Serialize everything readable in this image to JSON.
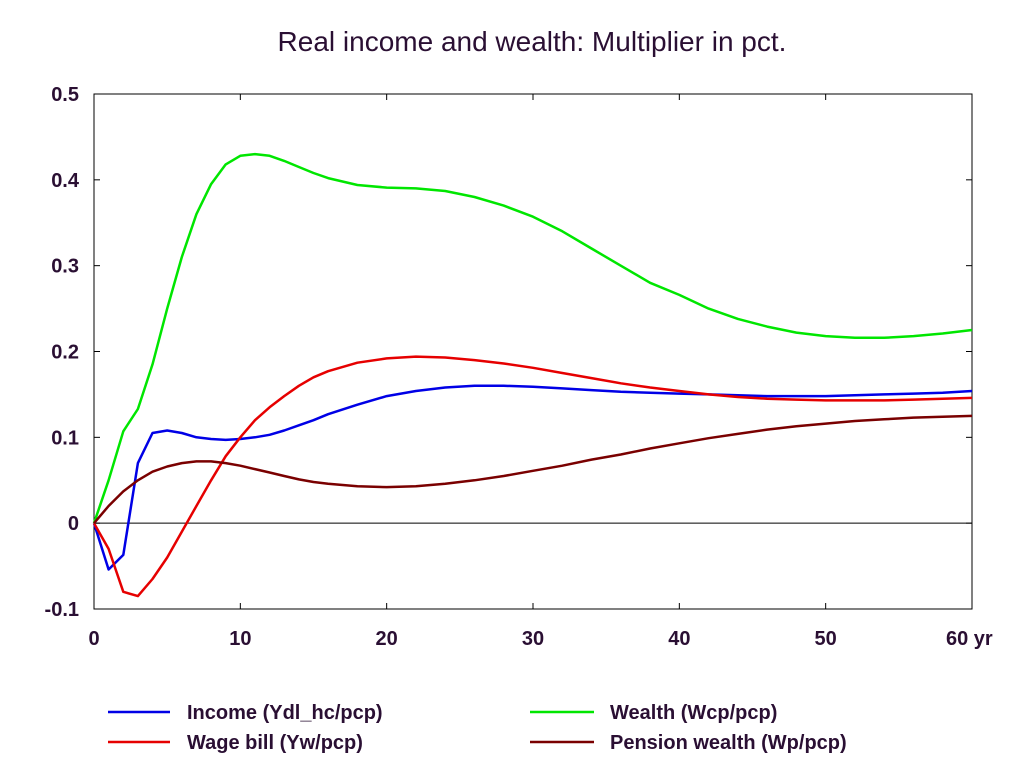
{
  "chart_data": {
    "type": "line",
    "title": "Real income and wealth: Multiplier in pct.",
    "xlabel": "",
    "ylabel": "",
    "x_unit_label": "yr",
    "xlim": [
      0,
      60
    ],
    "ylim": [
      -0.1,
      0.5
    ],
    "x_ticks": [
      0,
      10,
      20,
      30,
      40,
      50,
      60
    ],
    "y_ticks": [
      -0.1,
      0,
      0.1,
      0.2,
      0.3,
      0.4,
      0.5
    ],
    "y_tick_labels": [
      "-0.1",
      "0",
      "0.1",
      "0.2",
      "0.3",
      "0.4",
      "0.5"
    ],
    "x_tick_labels": [
      "0",
      "10",
      "20",
      "30",
      "40",
      "50",
      "60 yr"
    ],
    "grid": false,
    "zero_line": true,
    "legend_position": "bottom",
    "series": [
      {
        "name": "Income (Ydl_hc/pcp)",
        "color": "#0000e6",
        "x": [
          0,
          1,
          2,
          3,
          4,
          5,
          6,
          7,
          8,
          9,
          10,
          11,
          12,
          13,
          14,
          15,
          16,
          18,
          20,
          22,
          24,
          26,
          28,
          30,
          32,
          34,
          36,
          38,
          40,
          42,
          44,
          46,
          48,
          50,
          52,
          54,
          56,
          58,
          60
        ],
        "values": [
          0,
          -0.054,
          -0.037,
          0.07,
          0.105,
          0.108,
          0.105,
          0.1,
          0.098,
          0.097,
          0.098,
          0.1,
          0.103,
          0.108,
          0.114,
          0.12,
          0.127,
          0.138,
          0.148,
          0.154,
          0.158,
          0.16,
          0.16,
          0.159,
          0.157,
          0.155,
          0.153,
          0.152,
          0.151,
          0.15,
          0.149,
          0.148,
          0.148,
          0.148,
          0.149,
          0.15,
          0.151,
          0.152,
          0.154
        ]
      },
      {
        "name": "Wage bill (Yw/pcp)",
        "color": "#e60000",
        "x": [
          0,
          1,
          2,
          3,
          4,
          5,
          6,
          7,
          8,
          9,
          10,
          11,
          12,
          13,
          14,
          15,
          16,
          18,
          20,
          22,
          24,
          26,
          28,
          30,
          32,
          34,
          36,
          38,
          40,
          42,
          44,
          46,
          48,
          50,
          52,
          54,
          56,
          58,
          60
        ],
        "values": [
          0,
          -0.03,
          -0.08,
          -0.085,
          -0.065,
          -0.04,
          -0.01,
          0.02,
          0.05,
          0.078,
          0.1,
          0.12,
          0.135,
          0.148,
          0.16,
          0.17,
          0.177,
          0.187,
          0.192,
          0.194,
          0.193,
          0.19,
          0.186,
          0.181,
          0.175,
          0.169,
          0.163,
          0.158,
          0.154,
          0.15,
          0.147,
          0.145,
          0.144,
          0.143,
          0.143,
          0.143,
          0.144,
          0.145,
          0.146
        ]
      },
      {
        "name": "Wealth (Wcp/pcp)",
        "color": "#00e600",
        "x": [
          0,
          1,
          2,
          3,
          4,
          5,
          6,
          7,
          8,
          9,
          10,
          11,
          12,
          13,
          14,
          15,
          16,
          18,
          20,
          22,
          24,
          26,
          28,
          30,
          32,
          34,
          36,
          38,
          40,
          42,
          44,
          46,
          48,
          50,
          52,
          54,
          56,
          58,
          60
        ],
        "values": [
          0,
          0.05,
          0.107,
          0.133,
          0.185,
          0.25,
          0.31,
          0.36,
          0.395,
          0.418,
          0.428,
          0.43,
          0.428,
          0.422,
          0.415,
          0.408,
          0.402,
          0.394,
          0.391,
          0.39,
          0.387,
          0.38,
          0.37,
          0.357,
          0.34,
          0.32,
          0.3,
          0.28,
          0.266,
          0.25,
          0.238,
          0.229,
          0.222,
          0.218,
          0.216,
          0.216,
          0.218,
          0.221,
          0.225
        ]
      },
      {
        "name": "Pension wealth (Wp/pcp)",
        "color": "#7a0000",
        "x": [
          0,
          1,
          2,
          3,
          4,
          5,
          6,
          7,
          8,
          9,
          10,
          11,
          12,
          13,
          14,
          15,
          16,
          18,
          20,
          22,
          24,
          26,
          28,
          30,
          32,
          34,
          36,
          38,
          40,
          42,
          44,
          46,
          48,
          50,
          52,
          54,
          56,
          58,
          60
        ],
        "values": [
          0,
          0.02,
          0.037,
          0.05,
          0.06,
          0.066,
          0.07,
          0.072,
          0.072,
          0.07,
          0.067,
          0.063,
          0.059,
          0.055,
          0.051,
          0.048,
          0.046,
          0.043,
          0.042,
          0.043,
          0.046,
          0.05,
          0.055,
          0.061,
          0.067,
          0.074,
          0.08,
          0.087,
          0.093,
          0.099,
          0.104,
          0.109,
          0.113,
          0.116,
          0.119,
          0.121,
          0.123,
          0.124,
          0.125
        ]
      }
    ]
  }
}
